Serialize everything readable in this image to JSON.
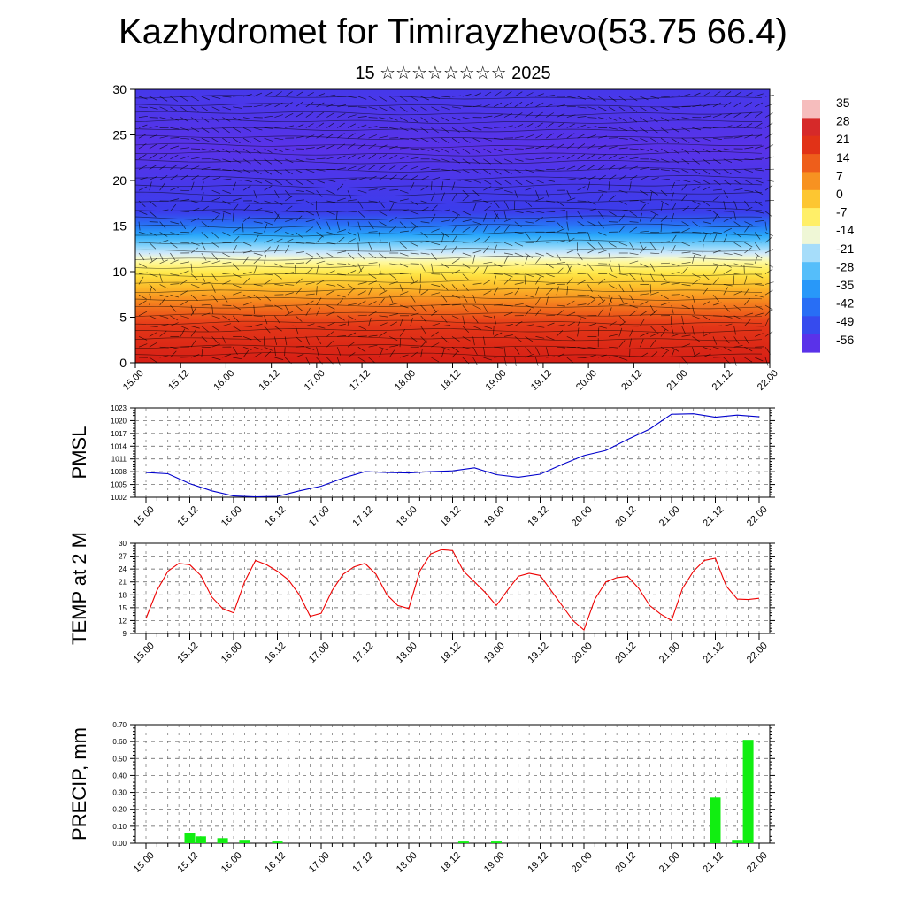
{
  "title": "Kazhydromet for Timirayzhevo(53.75 66.4)",
  "subtitle": "15 ☆☆☆☆☆☆☆☆ 2025",
  "time_labels": [
    "15.00",
    "15.12",
    "16.00",
    "16.12",
    "17.00",
    "17.12",
    "18.00",
    "18.12",
    "19.00",
    "19.12",
    "20.00",
    "20.12",
    "21.00",
    "21.12",
    "22.00"
  ],
  "chart_data": [
    {
      "type": "heatmap",
      "name": "cross-section",
      "x_labels_ref": "time_labels",
      "ylim": [
        0,
        30
      ],
      "y_ticks": [
        0,
        5,
        10,
        15,
        20,
        25,
        30
      ],
      "colorbar": {
        "labels": [
          "35",
          "28",
          "21",
          "14",
          "7",
          "0",
          "-7",
          "-14",
          "-21",
          "-28",
          "-35",
          "-42",
          "-49",
          "-56"
        ],
        "values": [
          35,
          28,
          21,
          14,
          7,
          0,
          -7,
          -14,
          -21,
          -28,
          -35,
          -42,
          -49,
          -56
        ]
      }
    },
    {
      "type": "line",
      "ylabel": "PMSL",
      "ylim": [
        1002,
        1023
      ],
      "y_ticks": [
        "1002",
        "1005",
        "1008",
        "1011",
        "1014",
        "1017",
        "1020",
        "1023"
      ],
      "color": "#0000cc",
      "x": [
        0,
        0.25,
        0.5,
        0.75,
        1,
        1.25,
        1.5,
        1.75,
        2,
        2.25,
        2.5,
        2.75,
        3,
        3.25,
        3.5,
        3.75,
        4,
        4.25,
        4.5,
        4.75,
        5,
        5.25,
        5.5,
        5.75,
        6,
        6.25,
        6.5,
        6.75,
        7
      ],
      "values": [
        1007.8,
        1007.5,
        1005.2,
        1003.5,
        1002.3,
        1002.1,
        1002.2,
        1003.5,
        1004.6,
        1006.5,
        1008.0,
        1007.8,
        1007.7,
        1008.0,
        1008.2,
        1008.9,
        1007.3,
        1006.7,
        1007.4,
        1009.7,
        1011.8,
        1013.0,
        1015.6,
        1018.0,
        1021.5,
        1021.6,
        1020.8,
        1021.3,
        1020.9
      ]
    },
    {
      "type": "line",
      "ylabel": "TEMP at 2 M",
      "ylim": [
        9,
        30
      ],
      "y_ticks": [
        "9",
        "12",
        "15",
        "18",
        "21",
        "24",
        "27",
        "30"
      ],
      "color": "#ee0000",
      "x": [
        0,
        0.125,
        0.25,
        0.375,
        0.5,
        0.625,
        0.75,
        0.875,
        1,
        1.125,
        1.25,
        1.375,
        1.5,
        1.625,
        1.75,
        1.875,
        2,
        2.125,
        2.25,
        2.375,
        2.5,
        2.625,
        2.75,
        2.875,
        3,
        3.125,
        3.25,
        3.375,
        3.5,
        3.625,
        3.75,
        3.875,
        4,
        4.125,
        4.25,
        4.375,
        4.5,
        4.625,
        4.75,
        4.875,
        5,
        5.125,
        5.25,
        5.375,
        5.5,
        5.625,
        5.75,
        5.875,
        6,
        6.125,
        6.25,
        6.375,
        6.5,
        6.625,
        6.75,
        6.875,
        7
      ],
      "values": [
        12.5,
        19,
        23.5,
        25.3,
        25,
        22.5,
        17.5,
        14.8,
        13.8,
        21,
        26,
        25,
        23.5,
        21.5,
        18,
        13,
        13.7,
        19,
        22.8,
        24.5,
        25.3,
        22.8,
        18,
        15.5,
        14.8,
        23.5,
        27.5,
        28.5,
        28.3,
        23.5,
        21,
        18.5,
        15.5,
        19,
        22.3,
        23,
        22.5,
        19,
        15.5,
        12,
        9.8,
        17,
        21,
        22,
        22.3,
        19.5,
        15.5,
        13.5,
        12,
        19.5,
        23.5,
        26,
        26.5,
        20,
        17,
        16.9,
        17.2
      ]
    },
    {
      "type": "bar",
      "ylabel": "PRECIP, mm",
      "ylim": [
        0,
        0.7
      ],
      "y_ticks": [
        "0.00",
        "0.10",
        "0.20",
        "0.30",
        "0.40",
        "0.50",
        "0.60",
        "0.70"
      ],
      "color": "#11ee11",
      "x": [
        0.5,
        0.625,
        0.875,
        1.125,
        1.5,
        3.625,
        4,
        6.5,
        6.75,
        6.875
      ],
      "values": [
        0.06,
        0.04,
        0.03,
        0.02,
        0.01,
        0.01,
        0.01,
        0.27,
        0.02,
        0.61
      ]
    }
  ]
}
